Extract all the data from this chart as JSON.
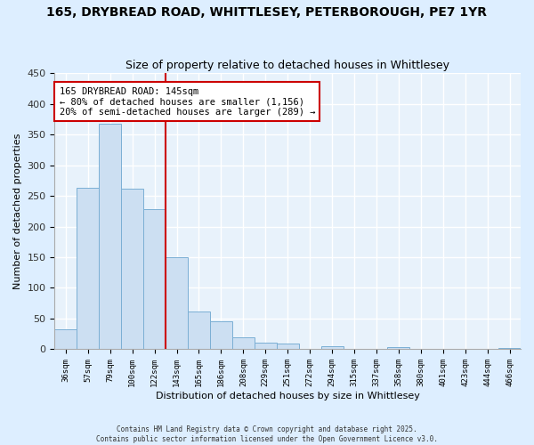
{
  "title": "165, DRYBREAD ROAD, WHITTLESEY, PETERBOROUGH, PE7 1YR",
  "subtitle": "Size of property relative to detached houses in Whittlesey",
  "xlabel": "Distribution of detached houses by size in Whittlesey",
  "ylabel": "Number of detached properties",
  "bin_labels": [
    "36sqm",
    "57sqm",
    "79sqm",
    "100sqm",
    "122sqm",
    "143sqm",
    "165sqm",
    "186sqm",
    "208sqm",
    "229sqm",
    "251sqm",
    "272sqm",
    "294sqm",
    "315sqm",
    "337sqm",
    "358sqm",
    "380sqm",
    "401sqm",
    "423sqm",
    "444sqm",
    "466sqm"
  ],
  "bin_values": [
    33,
    263,
    368,
    261,
    229,
    150,
    61,
    45,
    20,
    11,
    10,
    0,
    5,
    0,
    0,
    3,
    0,
    0,
    0,
    0,
    2
  ],
  "bar_color": "#ccdff2",
  "bar_edge_color": "#7bafd4",
  "marker_line_color": "#cc0000",
  "annotation_line1": "165 DRYBREAD ROAD: 145sqm",
  "annotation_line2": "← 80% of detached houses are smaller (1,156)",
  "annotation_line3": "20% of semi-detached houses are larger (289) →",
  "ylim": [
    0,
    450
  ],
  "background_color": "#ddeeff",
  "plot_bg_color": "#e8f2fb",
  "grid_color": "#c8d8e8",
  "title_fontsize": 10,
  "subtitle_fontsize": 9,
  "footer_line1": "Contains HM Land Registry data © Crown copyright and database right 2025.",
  "footer_line2": "Contains public sector information licensed under the Open Government Licence v3.0."
}
